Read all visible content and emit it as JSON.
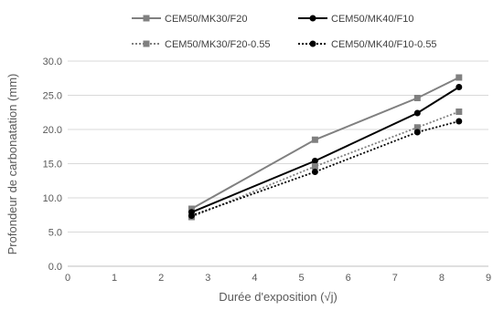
{
  "chart_data": {
    "type": "line",
    "xlabel": "Durée d'exposition (√j)",
    "ylabel": "Profondeur de carbonatation (mm)",
    "xlim": [
      0,
      9
    ],
    "ylim": [
      0,
      30
    ],
    "x_ticks": [
      "0",
      "1",
      "2",
      "3",
      "4",
      "5",
      "6",
      "7",
      "8",
      "9"
    ],
    "y_ticks": [
      "0.0",
      "5.0",
      "10.0",
      "15.0",
      "20.0",
      "25.0",
      "30.0"
    ],
    "grid": "horizontal",
    "legend_position": "top",
    "series": [
      {
        "name": "CEM50/MK30/F20",
        "color": "#808080",
        "line_style": "solid",
        "marker": "square",
        "points": [
          [
            2.65,
            8.4
          ],
          [
            5.29,
            18.5
          ],
          [
            7.48,
            24.6
          ],
          [
            8.37,
            27.6
          ]
        ]
      },
      {
        "name": "CEM50/MK40/F10",
        "color": "#000000",
        "line_style": "solid",
        "marker": "circle",
        "points": [
          [
            2.65,
            7.9
          ],
          [
            5.29,
            15.4
          ],
          [
            7.48,
            22.4
          ],
          [
            8.37,
            26.2
          ]
        ]
      },
      {
        "name": "CEM50/MK30/F20-0.55",
        "color": "#808080",
        "line_style": "dotted",
        "marker": "square",
        "points": [
          [
            2.65,
            7.2
          ],
          [
            5.29,
            14.6
          ],
          [
            7.48,
            20.3
          ],
          [
            8.37,
            22.6
          ]
        ]
      },
      {
        "name": "CEM50/MK40/F10-0.55",
        "color": "#000000",
        "line_style": "dotted",
        "marker": "circle",
        "points": [
          [
            2.65,
            7.4
          ],
          [
            5.29,
            13.8
          ],
          [
            7.48,
            19.6
          ],
          [
            8.37,
            21.2
          ]
        ]
      }
    ]
  }
}
